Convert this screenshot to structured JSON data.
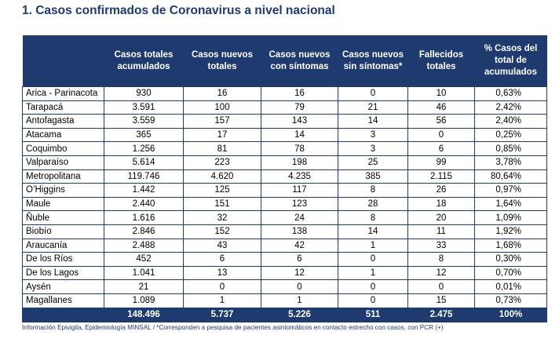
{
  "title": "1. Casos confirmados de Coronavirus a nivel nacional",
  "table": {
    "headers": [
      "",
      "Casos totales acumulados",
      "Casos nuevos totales",
      "Casos nuevos con síntomas",
      "Casos nuevos sin síntomas*",
      "Fallecidos totales",
      "% Casos del total de acumulados"
    ],
    "rows": [
      [
        "Arica - Parinacota",
        "930",
        "16",
        "16",
        "0",
        "10",
        "0,63%"
      ],
      [
        "Tarapacá",
        "3.591",
        "100",
        "79",
        "21",
        "46",
        "2,42%"
      ],
      [
        "Antofagasta",
        "3.559",
        "157",
        "143",
        "14",
        "56",
        "2,40%"
      ],
      [
        "Atacama",
        "365",
        "17",
        "14",
        "3",
        "0",
        "0,25%"
      ],
      [
        "Coquimbo",
        "1.256",
        "81",
        "78",
        "3",
        "6",
        "0,85%"
      ],
      [
        "Valparaíso",
        "5.614",
        "223",
        "198",
        "25",
        "99",
        "3,78%"
      ],
      [
        "Metropolitana",
        "119.746",
        "4.620",
        "4.235",
        "385",
        "2.115",
        "80,64%"
      ],
      [
        "O’Higgins",
        "1.442",
        "125",
        "117",
        "8",
        "26",
        "0,97%"
      ],
      [
        "Maule",
        "2.440",
        "151",
        "123",
        "28",
        "18",
        "1,64%"
      ],
      [
        "Ñuble",
        "1.616",
        "32",
        "24",
        "8",
        "20",
        "1,09%"
      ],
      [
        "Biobío",
        "2.846",
        "152",
        "138",
        "14",
        "11",
        "1,92%"
      ],
      [
        "Araucanía",
        "2.488",
        "43",
        "42",
        "1",
        "33",
        "1,68%"
      ],
      [
        "De los Ríos",
        "452",
        "6",
        "6",
        "0",
        "8",
        "0,30%"
      ],
      [
        "De los Lagos",
        "1.041",
        "13",
        "12",
        "1",
        "12",
        "0,70%"
      ],
      [
        "Aysén",
        "21",
        "0",
        "0",
        "0",
        "0",
        "0,01%"
      ],
      [
        "Magallanes",
        "1.089",
        "1",
        "1",
        "0",
        "15",
        "0,73%"
      ]
    ],
    "totals": [
      "",
      "148.496",
      "5.737",
      "5.226",
      "511",
      "2.475",
      "100%"
    ]
  },
  "footnote": "Información Epivigila, Epidemiología MINSAL / *Corresponden a pesquisa de pacientes asintomáticos en contacto estrecho con casos, con PCR (+)",
  "colors": {
    "header_bg": "#1f3a6e",
    "border": "#1f3a6e",
    "title": "#1f3a6e"
  }
}
